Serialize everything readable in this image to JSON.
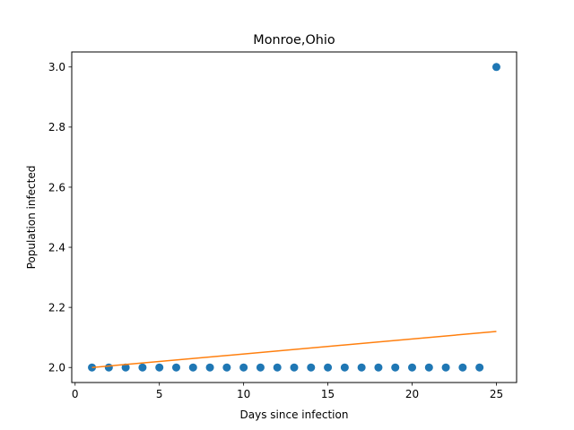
{
  "chart_data": {
    "type": "scatter",
    "title": "Monroe,Ohio",
    "xlabel": "Days since infection",
    "ylabel": "Population infected",
    "xlim": [
      -0.2,
      26.2
    ],
    "ylim": [
      1.95,
      3.05
    ],
    "x_ticks": [
      0,
      5,
      10,
      15,
      20,
      25
    ],
    "y_ticks": [
      2.0,
      2.2,
      2.4,
      2.6,
      2.8,
      3.0
    ],
    "y_tick_labels": [
      "2.0",
      "2.2",
      "2.4",
      "2.6",
      "2.8",
      "3.0"
    ],
    "grid": false,
    "series": [
      {
        "kind": "scatter",
        "color": "#1f77b4",
        "x": [
          1,
          2,
          3,
          4,
          5,
          6,
          7,
          8,
          9,
          10,
          11,
          12,
          13,
          14,
          15,
          16,
          17,
          18,
          19,
          20,
          21,
          22,
          23,
          24,
          25
        ],
        "y": [
          2,
          2,
          2,
          2,
          2,
          2,
          2,
          2,
          2,
          2,
          2,
          2,
          2,
          2,
          2,
          2,
          2,
          2,
          2,
          2,
          2,
          2,
          2,
          2,
          3
        ]
      },
      {
        "kind": "line",
        "color": "#ff7f0e",
        "x": [
          1,
          25
        ],
        "y": [
          2.0,
          2.12
        ]
      }
    ]
  }
}
